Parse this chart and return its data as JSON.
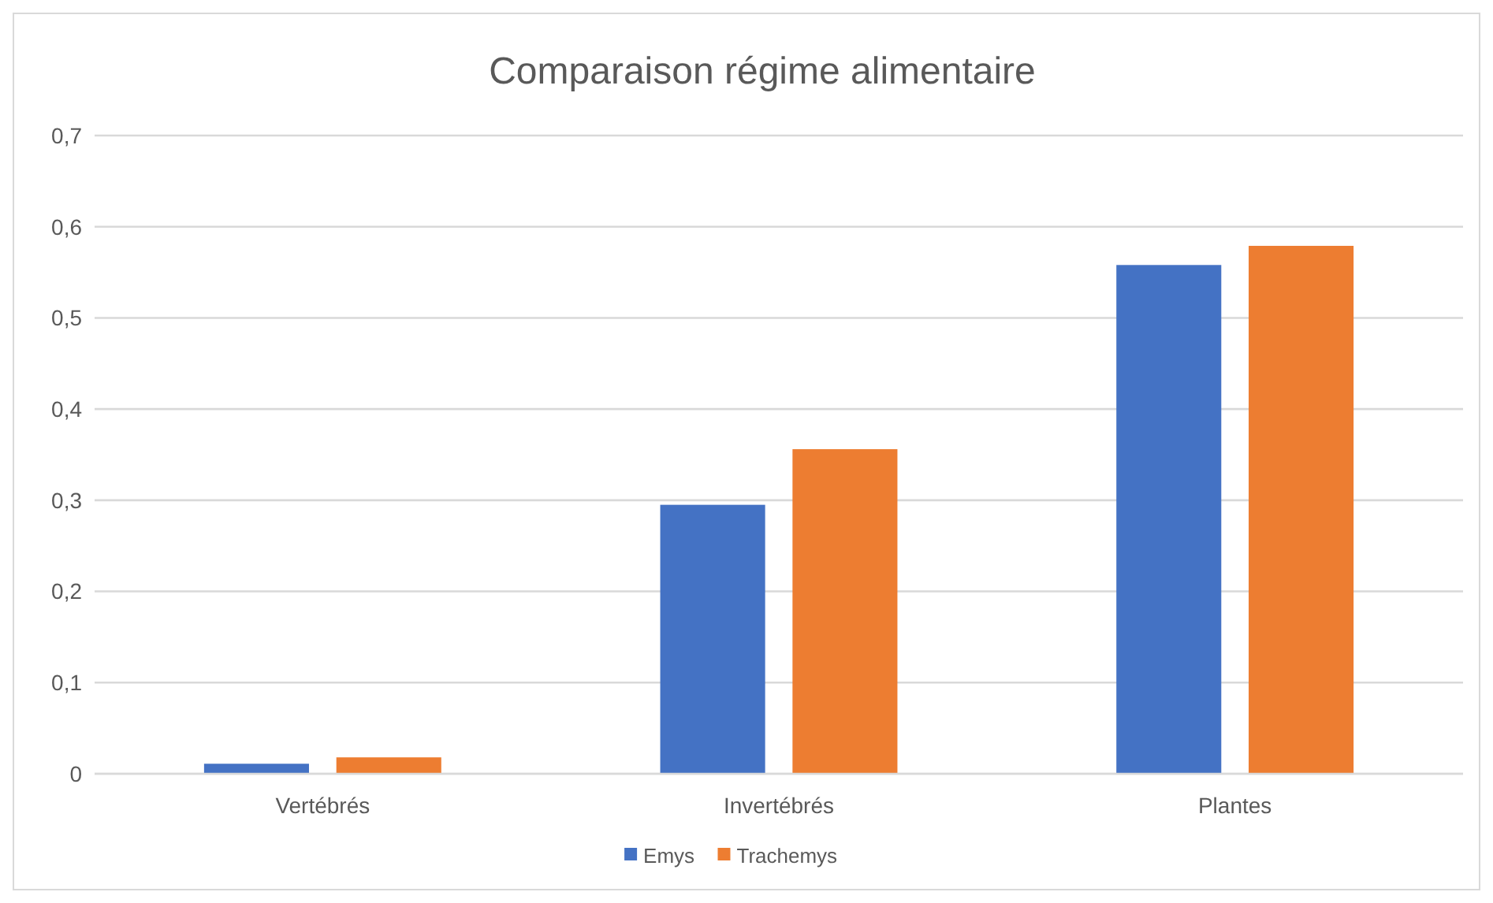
{
  "chart_data": {
    "type": "bar",
    "title": "Comparaison régime alimentaire",
    "categories": [
      "Vertébrés",
      "Invertébrés",
      "Plantes"
    ],
    "series": [
      {
        "name": "Emys",
        "color": "#4472c4",
        "values": [
          0.011,
          0.295,
          0.558
        ]
      },
      {
        "name": "Trachemys",
        "color": "#ed7d31",
        "values": [
          0.018,
          0.356,
          0.579
        ]
      }
    ],
    "ylim": [
      0,
      0.7
    ],
    "yticks": [
      {
        "value": 0,
        "label": "0"
      },
      {
        "value": 0.1,
        "label": "0,1"
      },
      {
        "value": 0.2,
        "label": "0,2"
      },
      {
        "value": 0.3,
        "label": "0,3"
      },
      {
        "value": 0.4,
        "label": "0,4"
      },
      {
        "value": 0.5,
        "label": "0,5"
      },
      {
        "value": 0.6,
        "label": "0,6"
      },
      {
        "value": 0.7,
        "label": "0,7"
      }
    ],
    "grid": "y",
    "legend": "bottom"
  }
}
